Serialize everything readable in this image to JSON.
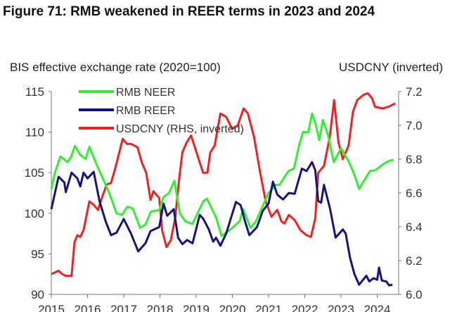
{
  "chart_data": {
    "type": "line",
    "title": "Figure 71: RMB weakened in REER terms in 2023 and 2024",
    "ylabel_left": "BIS effective exchange rate (2020=100)",
    "ylabel_right": "USDCNY (inverted)",
    "xlim": [
      2015,
      2024.5
    ],
    "ylim_left": [
      90,
      115
    ],
    "ylim_right": [
      6.0,
      7.2
    ],
    "right_axis_inverted_label": true,
    "x_ticks": [
      "2015",
      "2016",
      "2017",
      "2018",
      "2019",
      "2020",
      "2021",
      "2022",
      "2023",
      "2024"
    ],
    "y_ticks_left": [
      "90",
      "95",
      "100",
      "105",
      "110",
      "115"
    ],
    "y_ticks_right": [
      "6.0",
      "6.2",
      "6.4",
      "6.6",
      "6.8",
      "7.0",
      "7.2"
    ],
    "grid": false,
    "legend_placement": "top-left",
    "series": [
      {
        "name": "RMB NEER",
        "axis": "left",
        "color": "#33ee33",
        "points": [
          [
            2015.0,
            103
          ],
          [
            2015.1,
            105
          ],
          [
            2015.25,
            107
          ],
          [
            2015.45,
            106.3
          ],
          [
            2015.55,
            107
          ],
          [
            2015.65,
            108.3
          ],
          [
            2015.8,
            107.2
          ],
          [
            2015.95,
            106.7
          ],
          [
            2016.05,
            108.2
          ],
          [
            2016.25,
            106
          ],
          [
            2016.45,
            104
          ],
          [
            2016.6,
            102.5
          ],
          [
            2016.8,
            100
          ],
          [
            2016.95,
            99.8
          ],
          [
            2017.1,
            100.8
          ],
          [
            2017.25,
            100.6
          ],
          [
            2017.45,
            98.2
          ],
          [
            2017.6,
            98.6
          ],
          [
            2017.75,
            100.2
          ],
          [
            2017.98,
            100.4
          ],
          [
            2018.1,
            102
          ],
          [
            2018.25,
            102.5
          ],
          [
            2018.4,
            104
          ],
          [
            2018.55,
            100
          ],
          [
            2018.7,
            99
          ],
          [
            2018.9,
            98.7
          ],
          [
            2019.2,
            101.5
          ],
          [
            2019.3,
            101.8
          ],
          [
            2019.55,
            99.5
          ],
          [
            2019.7,
            97.2
          ],
          [
            2019.95,
            98
          ],
          [
            2020.2,
            99
          ],
          [
            2020.3,
            100.5
          ],
          [
            2020.5,
            98.2
          ],
          [
            2020.65,
            99
          ],
          [
            2020.85,
            101
          ],
          [
            2021.0,
            102.5
          ],
          [
            2021.2,
            103.5
          ],
          [
            2021.3,
            103.5
          ],
          [
            2021.55,
            105.2
          ],
          [
            2021.7,
            105.5
          ],
          [
            2021.85,
            108.5
          ],
          [
            2021.95,
            110
          ],
          [
            2022.1,
            110
          ],
          [
            2022.2,
            112.3
          ],
          [
            2022.3,
            111
          ],
          [
            2022.4,
            109
          ],
          [
            2022.5,
            111.5
          ],
          [
            2022.65,
            109.5
          ],
          [
            2022.8,
            106.3
          ],
          [
            2023.0,
            108
          ],
          [
            2023.2,
            106.5
          ],
          [
            2023.35,
            105
          ],
          [
            2023.5,
            103
          ],
          [
            2023.7,
            104.5
          ],
          [
            2023.8,
            105.2
          ],
          [
            2023.95,
            105.3
          ],
          [
            2024.15,
            106
          ],
          [
            2024.3,
            106.4
          ],
          [
            2024.45,
            106.6
          ]
        ]
      },
      {
        "name": "RMB REER",
        "axis": "left",
        "color": "#14147a",
        "points": [
          [
            2015.0,
            100.5
          ],
          [
            2015.2,
            104.5
          ],
          [
            2015.36,
            103.8
          ],
          [
            2015.4,
            102.6
          ],
          [
            2015.56,
            105
          ],
          [
            2015.72,
            104.3
          ],
          [
            2015.8,
            103.3
          ],
          [
            2015.89,
            105
          ],
          [
            2016.0,
            104.3
          ],
          [
            2016.17,
            105.1
          ],
          [
            2016.33,
            101.5
          ],
          [
            2016.5,
            99
          ],
          [
            2016.65,
            97.3
          ],
          [
            2016.8,
            97.6
          ],
          [
            2017.0,
            99.3
          ],
          [
            2017.2,
            97.5
          ],
          [
            2017.4,
            95.3
          ],
          [
            2017.6,
            96.3
          ],
          [
            2017.74,
            97.8
          ],
          [
            2017.98,
            98.3
          ],
          [
            2018.1,
            101.2
          ],
          [
            2018.2,
            99.7
          ],
          [
            2018.38,
            100.5
          ],
          [
            2018.5,
            97
          ],
          [
            2018.62,
            96.2
          ],
          [
            2018.75,
            96.7
          ],
          [
            2018.9,
            96.3
          ],
          [
            2019.1,
            99.8
          ],
          [
            2019.2,
            99.3
          ],
          [
            2019.35,
            98
          ],
          [
            2019.47,
            96.5
          ],
          [
            2019.55,
            97
          ],
          [
            2019.67,
            96
          ],
          [
            2019.83,
            97.5
          ],
          [
            2020.1,
            101.4
          ],
          [
            2020.23,
            101
          ],
          [
            2020.35,
            99
          ],
          [
            2020.47,
            97.3
          ],
          [
            2020.68,
            98.3
          ],
          [
            2020.84,
            100.3
          ],
          [
            2021.0,
            101.2
          ],
          [
            2021.12,
            103.9
          ],
          [
            2021.24,
            102.3
          ],
          [
            2021.4,
            101.7
          ],
          [
            2021.56,
            102.5
          ],
          [
            2021.72,
            102.4
          ],
          [
            2021.92,
            105.5
          ],
          [
            2022.05,
            105.2
          ],
          [
            2022.2,
            106.3
          ],
          [
            2022.29,
            105.3
          ],
          [
            2022.37,
            101.5
          ],
          [
            2022.45,
            101.3
          ],
          [
            2022.53,
            103.5
          ],
          [
            2022.7,
            100.5
          ],
          [
            2022.85,
            97
          ],
          [
            2023.05,
            98
          ],
          [
            2023.13,
            97.5
          ],
          [
            2023.25,
            94.5
          ],
          [
            2023.37,
            92.5
          ],
          [
            2023.5,
            91.2
          ],
          [
            2023.7,
            92.3
          ],
          [
            2023.78,
            91.6
          ],
          [
            2023.9,
            92
          ],
          [
            2024.0,
            91.8
          ],
          [
            2024.05,
            93.3
          ],
          [
            2024.13,
            91.7
          ],
          [
            2024.25,
            91.6
          ],
          [
            2024.33,
            91.1
          ],
          [
            2024.42,
            91.2
          ]
        ]
      },
      {
        "name": "USDCNY (RHS, inverted)",
        "axis": "right",
        "color": "#ee2222",
        "points": [
          [
            2015.0,
            6.12
          ],
          [
            2015.2,
            6.14
          ],
          [
            2015.3,
            6.12
          ],
          [
            2015.4,
            6.11
          ],
          [
            2015.56,
            6.11
          ],
          [
            2015.64,
            6.31
          ],
          [
            2015.72,
            6.35
          ],
          [
            2015.8,
            6.34
          ],
          [
            2015.89,
            6.38
          ],
          [
            2016.05,
            6.55
          ],
          [
            2016.17,
            6.53
          ],
          [
            2016.29,
            6.5
          ],
          [
            2016.41,
            6.58
          ],
          [
            2016.53,
            6.65
          ],
          [
            2016.65,
            6.66
          ],
          [
            2016.77,
            6.75
          ],
          [
            2016.97,
            6.92
          ],
          [
            2017.09,
            6.89
          ],
          [
            2017.21,
            6.89
          ],
          [
            2017.38,
            6.87
          ],
          [
            2017.5,
            6.78
          ],
          [
            2017.62,
            6.72
          ],
          [
            2017.74,
            6.56
          ],
          [
            2017.82,
            6.61
          ],
          [
            2017.98,
            6.57
          ],
          [
            2018.06,
            6.38
          ],
          [
            2018.18,
            6.28
          ],
          [
            2018.3,
            6.32
          ],
          [
            2018.42,
            6.45
          ],
          [
            2018.54,
            6.7
          ],
          [
            2018.62,
            6.84
          ],
          [
            2018.74,
            6.9
          ],
          [
            2018.86,
            6.94
          ],
          [
            2019.07,
            6.8
          ],
          [
            2019.19,
            6.72
          ],
          [
            2019.31,
            6.72
          ],
          [
            2019.39,
            6.84
          ],
          [
            2019.51,
            6.88
          ],
          [
            2019.67,
            7.07
          ],
          [
            2019.83,
            7.05
          ],
          [
            2019.99,
            6.98
          ],
          [
            2020.15,
            7.0
          ],
          [
            2020.31,
            7.1
          ],
          [
            2020.43,
            7.07
          ],
          [
            2020.6,
            6.93
          ],
          [
            2020.76,
            6.73
          ],
          [
            2020.92,
            6.55
          ],
          [
            2021.08,
            6.46
          ],
          [
            2021.24,
            6.5
          ],
          [
            2021.36,
            6.43
          ],
          [
            2021.44,
            6.42
          ],
          [
            2021.56,
            6.47
          ],
          [
            2021.72,
            6.44
          ],
          [
            2021.88,
            6.38
          ],
          [
            2022.05,
            6.35
          ],
          [
            2022.17,
            6.34
          ],
          [
            2022.29,
            6.45
          ],
          [
            2022.37,
            6.72
          ],
          [
            2022.53,
            6.76
          ],
          [
            2022.69,
            6.93
          ],
          [
            2022.81,
            7.15
          ],
          [
            2022.93,
            6.9
          ],
          [
            2023.05,
            6.8
          ],
          [
            2023.21,
            6.88
          ],
          [
            2023.33,
            7.08
          ],
          [
            2023.45,
            7.15
          ],
          [
            2023.62,
            7.18
          ],
          [
            2023.74,
            7.19
          ],
          [
            2023.86,
            7.16
          ],
          [
            2023.94,
            7.11
          ],
          [
            2024.15,
            7.1
          ],
          [
            2024.31,
            7.11
          ],
          [
            2024.5,
            7.13
          ]
        ]
      }
    ]
  }
}
